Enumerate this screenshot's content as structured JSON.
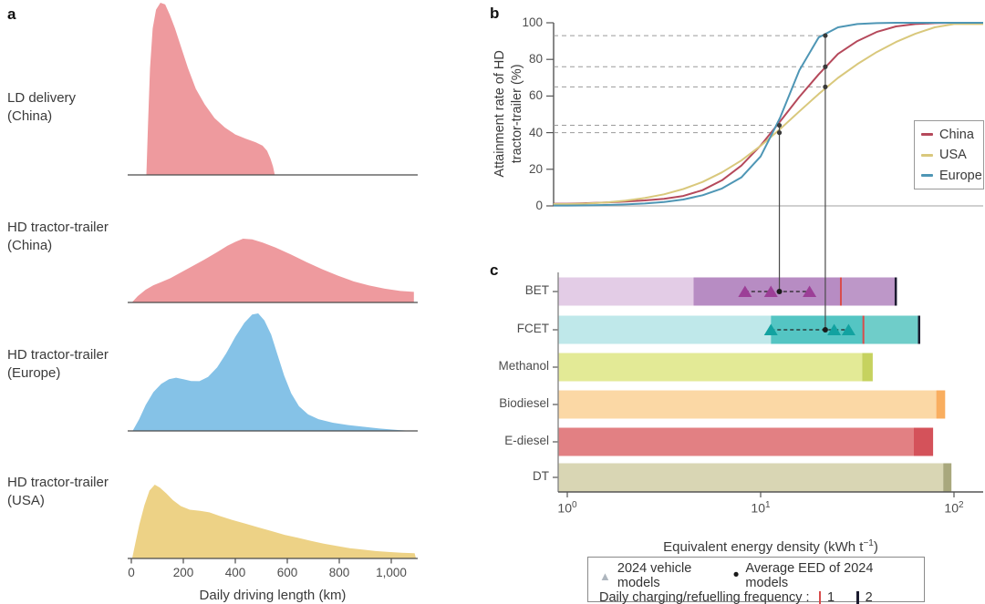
{
  "figure": {
    "panel_letters": {
      "a": "a",
      "b": "b",
      "c": "c"
    }
  },
  "chart_data": [
    {
      "type": "area",
      "panel": "a",
      "xlabel": "Daily driving length (km)",
      "xlim": [
        0,
        1100
      ],
      "x_tick_values": [
        0,
        200,
        400,
        600,
        800,
        1000
      ],
      "x_tick_labels": [
        "0",
        "200",
        "400",
        "600",
        "800",
        "1,000"
      ],
      "series": [
        {
          "name": "LD delivery (China)",
          "label_lines": [
            "LD delivery",
            "(China)"
          ],
          "color": "#EE9A9E",
          "points": [
            [
              58,
              0
            ],
            [
              64,
              0.28
            ],
            [
              72,
              0.62
            ],
            [
              82,
              0.85
            ],
            [
              95,
              0.96
            ],
            [
              112,
              1.0
            ],
            [
              130,
              0.99
            ],
            [
              148,
              0.93
            ],
            [
              168,
              0.85
            ],
            [
              192,
              0.74
            ],
            [
              218,
              0.62
            ],
            [
              248,
              0.5
            ],
            [
              282,
              0.41
            ],
            [
              320,
              0.33
            ],
            [
              360,
              0.275
            ],
            [
              400,
              0.235
            ],
            [
              440,
              0.21
            ],
            [
              478,
              0.19
            ],
            [
              505,
              0.17
            ],
            [
              522,
              0.14
            ],
            [
              535,
              0.095
            ],
            [
              545,
              0.05
            ],
            [
              552,
              0
            ]
          ]
        },
        {
          "name": "HD tractor-trailer (China)",
          "label_lines": [
            "HD tractor-trailer",
            "(China)"
          ],
          "color": "#EE9A9E",
          "points": [
            [
              2,
              0
            ],
            [
              25,
              0.1
            ],
            [
              55,
              0.2
            ],
            [
              85,
              0.27
            ],
            [
              115,
              0.32
            ],
            [
              150,
              0.38
            ],
            [
              190,
              0.47
            ],
            [
              235,
              0.57
            ],
            [
              280,
              0.67
            ],
            [
              330,
              0.79
            ],
            [
              370,
              0.89
            ],
            [
              400,
              0.95
            ],
            [
              430,
              1.0
            ],
            [
              465,
              0.99
            ],
            [
              505,
              0.94
            ],
            [
              555,
              0.86
            ],
            [
              615,
              0.75
            ],
            [
              675,
              0.63
            ],
            [
              735,
              0.52
            ],
            [
              795,
              0.42
            ],
            [
              855,
              0.33
            ],
            [
              915,
              0.265
            ],
            [
              975,
              0.215
            ],
            [
              1035,
              0.18
            ],
            [
              1087,
              0.165
            ],
            [
              1087,
              0
            ]
          ]
        },
        {
          "name": "HD tractor-trailer (Europe)",
          "label_lines": [
            "HD tractor-trailer",
            "(Europe)"
          ],
          "color": "#85C2E7",
          "points": [
            [
              5,
              0
            ],
            [
              30,
              0.1
            ],
            [
              55,
              0.22
            ],
            [
              85,
              0.33
            ],
            [
              115,
              0.4
            ],
            [
              145,
              0.44
            ],
            [
              172,
              0.453
            ],
            [
              200,
              0.44
            ],
            [
              230,
              0.425
            ],
            [
              262,
              0.423
            ],
            [
              295,
              0.46
            ],
            [
              330,
              0.54
            ],
            [
              365,
              0.66
            ],
            [
              400,
              0.8
            ],
            [
              435,
              0.92
            ],
            [
              465,
              0.99
            ],
            [
              488,
              1.0
            ],
            [
              512,
              0.94
            ],
            [
              538,
              0.82
            ],
            [
              562,
              0.65
            ],
            [
              588,
              0.47
            ],
            [
              615,
              0.32
            ],
            [
              645,
              0.21
            ],
            [
              680,
              0.14
            ],
            [
              720,
              0.1
            ],
            [
              775,
              0.07
            ],
            [
              835,
              0.05
            ],
            [
              895,
              0.035
            ],
            [
              955,
              0.02
            ],
            [
              1025,
              0.008
            ],
            [
              1085,
              0
            ]
          ]
        },
        {
          "name": "HD tractor-trailer (USA)",
          "label_lines": [
            "HD tractor-trailer",
            "(USA)"
          ],
          "color": "#EDD286",
          "points": [
            [
              3,
              0
            ],
            [
              15,
              0.2
            ],
            [
              30,
              0.45
            ],
            [
              50,
              0.72
            ],
            [
              70,
              0.92
            ],
            [
              90,
              1.0
            ],
            [
              110,
              0.96
            ],
            [
              135,
              0.88
            ],
            [
              160,
              0.79
            ],
            [
              190,
              0.71
            ],
            [
              225,
              0.66
            ],
            [
              265,
              0.645
            ],
            [
              300,
              0.625
            ],
            [
              340,
              0.575
            ],
            [
              390,
              0.52
            ],
            [
              440,
              0.47
            ],
            [
              490,
              0.42
            ],
            [
              540,
              0.37
            ],
            [
              590,
              0.32
            ],
            [
              640,
              0.28
            ],
            [
              690,
              0.24
            ],
            [
              740,
              0.2
            ],
            [
              790,
              0.17
            ],
            [
              840,
              0.14
            ],
            [
              890,
              0.12
            ],
            [
              940,
              0.1
            ],
            [
              990,
              0.088
            ],
            [
              1040,
              0.078
            ],
            [
              1090,
              0.07
            ],
            [
              1095,
              0
            ]
          ]
        }
      ]
    },
    {
      "type": "line",
      "panel": "b",
      "ylabel_lines": [
        "Attainment rate of HD",
        "tractor-trailer (%)"
      ],
      "y_ticks": [
        0,
        20,
        40,
        60,
        80,
        100
      ],
      "ylim": [
        0,
        100
      ],
      "x_scale": "log10",
      "xlim": [
        0.85,
        120
      ],
      "t_start": 0,
      "t_step": 0.1,
      "series": [
        {
          "name": "China",
          "color": "#B5495B",
          "values": [
            1.2,
            1.5,
            1.9,
            2.4,
            3.0,
            3.9,
            5.4,
            8.6,
            14,
            22,
            33,
            46,
            59.5,
            71.8,
            83,
            90,
            95,
            98,
            99.3,
            99.8,
            100
          ]
        },
        {
          "name": "USA",
          "color": "#D9C87C",
          "values": [
            1.0,
            1.3,
            1.9,
            2.9,
            4.3,
            6.3,
            9.2,
            13.1,
            18.3,
            24.8,
            32.8,
            41.9,
            51.6,
            61.1,
            69.9,
            77.4,
            84,
            89.5,
            94,
            97.5,
            99.3
          ]
        },
        {
          "name": "Europe",
          "color": "#4E96B5",
          "values": [
            0.2,
            0.3,
            0.5,
            0.8,
            1.3,
            2.1,
            3.5,
            5.8,
            9.5,
            15.5,
            27,
            48,
            74,
            92,
            97.5,
            99.3,
            99.8,
            100,
            100,
            100,
            100
          ]
        }
      ],
      "dashed_guides": [
        {
          "pct": 93,
          "to_eed": 21.6
        },
        {
          "pct": 76,
          "to_eed": 21.6
        },
        {
          "pct": 65,
          "to_eed": 21.6
        },
        {
          "pct": 44,
          "to_eed": 12.5
        },
        {
          "pct": 40,
          "to_eed": 12.5
        }
      ],
      "point_markers": [
        [
          12.5,
          44
        ],
        [
          12.5,
          40
        ],
        [
          21.6,
          93
        ],
        [
          21.6,
          76
        ],
        [
          21.6,
          65
        ]
      ],
      "drop_lines": [
        {
          "eed": 12.5,
          "from_pct": 44,
          "to_category_index": 0
        },
        {
          "eed": 21.6,
          "from_pct": 93,
          "to_category_index": 1
        }
      ],
      "legend_position": "right"
    },
    {
      "type": "bar",
      "panel": "c",
      "orientation": "horizontal",
      "x_scale": "log10",
      "xlabel_prefix": "Equivalent energy density (kWh t",
      "xlabel_sup": "−1",
      "xlabel_suffix": ")",
      "x_tick_exponents": [
        0,
        1,
        2
      ],
      "categories": [
        "BET",
        "FCET",
        "Methanol",
        "Biodiesel",
        "E-diesel",
        "DT"
      ],
      "bars": [
        {
          "category": "BET",
          "segments": [
            {
              "from": 0.9,
              "to": 4.5,
              "color": "#E3CCE6"
            },
            {
              "from": 4.5,
              "to": 26,
              "color": "#B78CC3"
            },
            {
              "from": 26,
              "to": 50,
              "color": "#BD97C8"
            }
          ],
          "freq1_line": 26,
          "freq2_line": 50,
          "triangle_color": "#9C3F97",
          "triangles": [
            8.3,
            11.3,
            17.9
          ],
          "avg_eed": 12.5
        },
        {
          "category": "FCET",
          "segments": [
            {
              "from": 0.9,
              "to": 11.3,
              "color": "#BFE8EA"
            },
            {
              "from": 11.3,
              "to": 34,
              "color": "#54C5C3"
            },
            {
              "from": 34,
              "to": 66,
              "color": "#6FCDC9"
            }
          ],
          "freq1_line": 34,
          "freq2_line": 66,
          "triangle_color": "#12A2A0",
          "triangles": [
            11.3,
            24,
            28.5
          ],
          "avg_eed": 21.6
        },
        {
          "category": "Methanol",
          "segments": [
            {
              "from": 0.9,
              "to": 33.5,
              "color": "#E3EA96"
            },
            {
              "from": 33.5,
              "to": 38,
              "color": "#C6D25F"
            }
          ]
        },
        {
          "category": "Biodiesel",
          "segments": [
            {
              "from": 0.9,
              "to": 81,
              "color": "#FBD8A5"
            },
            {
              "from": 81,
              "to": 90,
              "color": "#F9AE5F"
            }
          ]
        },
        {
          "category": "E-diesel",
          "segments": [
            {
              "from": 0.9,
              "to": 62,
              "color": "#E28083"
            },
            {
              "from": 62,
              "to": 78,
              "color": "#D4525A"
            }
          ]
        },
        {
          "category": "DT",
          "segments": [
            {
              "from": 0.9,
              "to": 88,
              "color": "#D9D6B4"
            },
            {
              "from": 88,
              "to": 97,
              "color": "#A9A87D"
            }
          ]
        }
      ],
      "legend": {
        "triangle_label": "2024 vehicle models",
        "triangle_color": "#AEB6BE",
        "dot_glyph": "•",
        "dot_label": "Average EED of 2024 models",
        "freq_label": "Daily charging/refuelling frequency :",
        "freq1_label": "1",
        "freq2_label": "2",
        "freq1_color": "#D84C4C",
        "freq2_color": "#1B1B2F"
      }
    }
  ]
}
